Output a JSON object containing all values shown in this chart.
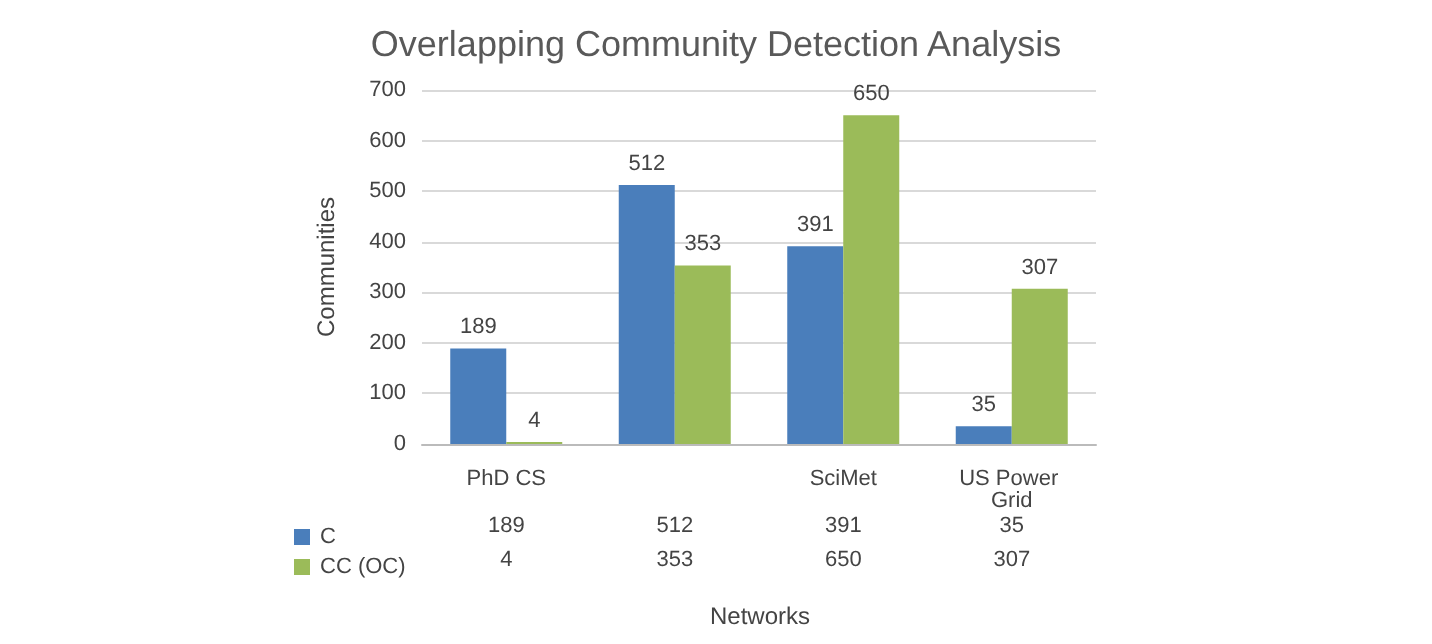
{
  "chart_data": {
    "type": "bar",
    "title": "Overlapping Community Detection Analysis",
    "xlabel": "Networks",
    "ylabel": "Communities",
    "categories": [
      "PhD CS",
      null,
      "SciMet",
      "US Power Grid"
    ],
    "series": [
      {
        "name": "C",
        "color": "#4a7ebb",
        "values": [
          189,
          512,
          391,
          35
        ],
        "value_labels": [
          "189",
          "512",
          "391",
          "35"
        ]
      },
      {
        "name": "CC (OC)",
        "color": "#9bbb59",
        "values": [
          4,
          353,
          650,
          307
        ],
        "value_labels": [
          "4",
          "353",
          "650",
          "307"
        ]
      }
    ],
    "ylim": [
      0,
      700
    ],
    "yticks": [
      0,
      100,
      200,
      300,
      400,
      500,
      600,
      700
    ],
    "grid": "y",
    "legend": "bottom",
    "data_labels": true
  }
}
